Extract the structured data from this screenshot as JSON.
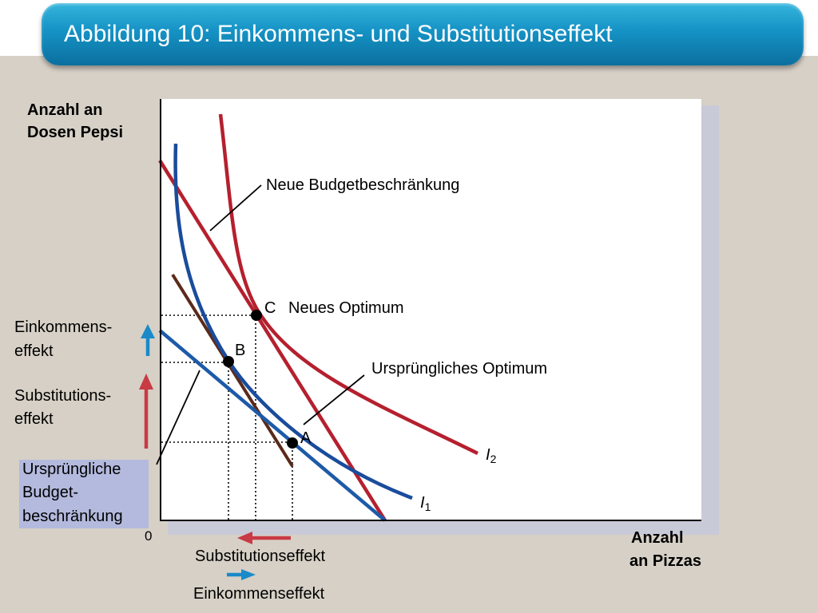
{
  "title": "Abbildung 10: Einkommens- und Substitutionseffekt",
  "axes": {
    "y_label_line1": "Anzahl an",
    "y_label_line2": "Dosen Pepsi",
    "x_label_line1": "Anzahl",
    "x_label_line2": "an Pizzas",
    "origin": "0"
  },
  "labels": {
    "new_budget": "Neue Budgetbeschränkung",
    "new_optimum": "Neues Optimum",
    "original_optimum": "Ursprüngliches Optimum",
    "income_effect_line1": "Einkommens-",
    "income_effect_line2": "effekt",
    "substitution_effect_line1": "Substitutions-",
    "substitution_effect_line2": "effekt",
    "original_budget_line1": "Ursprüngliche",
    "original_budget_line2": "Budget-",
    "original_budget_line3": "beschränkung",
    "substitution_effect_x": "Substitutionseffekt",
    "income_effect_x": "Einkommenseffekt"
  },
  "points": {
    "A": "A",
    "B": "B",
    "C": "C"
  },
  "curves": {
    "i1_letter": "I",
    "i1_sub": "1",
    "i2_letter": "I",
    "i2_sub": "2"
  },
  "colors": {
    "budget_new": "#b5202e",
    "budget_original": "#1d5aa8",
    "indifference_i1": "#1a4c9c",
    "indifference_i2": "#b5202e",
    "compensated_budget": "#5b2a1a",
    "income_arrow": "#1a8ac8",
    "substitution_arrow": "#c83a44"
  }
}
